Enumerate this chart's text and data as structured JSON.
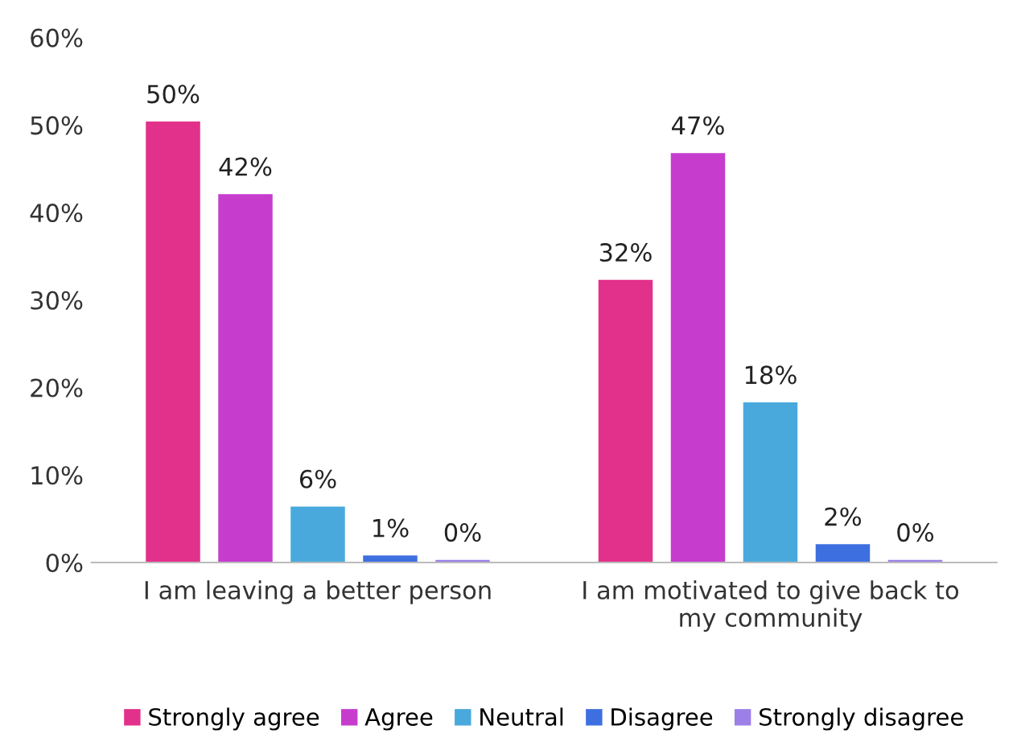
{
  "chart_data": {
    "type": "bar",
    "categories": [
      "I am leaving a better person",
      "I am motivated to give back to\nmy community"
    ],
    "series": [
      {
        "name": "Strongly agree",
        "color": "#e2318a",
        "values": [
          50.4,
          32.3
        ],
        "value_labels": [
          "50%",
          "32%"
        ]
      },
      {
        "name": "Agree",
        "color": "#c63dce",
        "values": [
          42.1,
          46.8
        ],
        "value_labels": [
          "42%",
          "47%"
        ]
      },
      {
        "name": "Neutral",
        "color": "#49a9dd",
        "values": [
          6.4,
          18.3
        ],
        "value_labels": [
          "6%",
          "18%"
        ]
      },
      {
        "name": "Disagree",
        "color": "#3e6fe0",
        "values": [
          0.8,
          2.1
        ],
        "value_labels": [
          "1%",
          "2%"
        ]
      },
      {
        "name": "Strongly disagree",
        "color": "#9c80e8",
        "values": [
          0.3,
          0.3
        ],
        "value_labels": [
          "0%",
          "0%"
        ]
      }
    ],
    "ylim": [
      0,
      60
    ],
    "yticks": [
      {
        "value": 0,
        "label": "0%"
      },
      {
        "value": 10,
        "label": "10%"
      },
      {
        "value": 20,
        "label": "20%"
      },
      {
        "value": 30,
        "label": "30%"
      },
      {
        "value": 40,
        "label": "40%"
      },
      {
        "value": 50,
        "label": "50%"
      },
      {
        "value": 60,
        "label": "60%"
      }
    ],
    "grid": false,
    "legend": "bottom"
  }
}
